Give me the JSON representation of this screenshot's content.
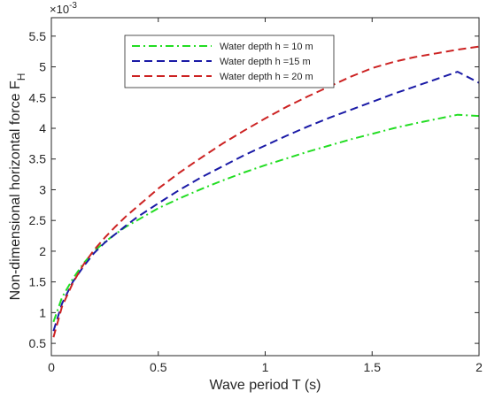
{
  "chart_data": {
    "type": "line",
    "title": "",
    "xlabel": "Wave period T (s)",
    "ylabel_main": "Non-dimensional horizontal force F",
    "ylabel_sub": "H",
    "y_exponent_base": "×10",
    "y_exponent_power": "-3",
    "xlim": [
      0,
      2
    ],
    "ylim": [
      0.3,
      5.8
    ],
    "xticks": [
      0,
      0.5,
      1,
      1.5,
      2
    ],
    "xtick_labels": [
      "0",
      "0.5",
      "1",
      "1.5",
      "2"
    ],
    "yticks": [
      0.5,
      1,
      1.5,
      2,
      2.5,
      3,
      3.5,
      4,
      4.5,
      5,
      5.5
    ],
    "ytick_labels": [
      "0.5",
      "1",
      "1.5",
      "2",
      "2.5",
      "3",
      "3.5",
      "4",
      "4.5",
      "5",
      "5.5"
    ],
    "grid": false,
    "legend_position": "top-center",
    "x": [
      0.01,
      0.05,
      0.1,
      0.15,
      0.2,
      0.25,
      0.3,
      0.35,
      0.4,
      0.5,
      0.6,
      0.7,
      0.8,
      0.9,
      1.0,
      1.1,
      1.2,
      1.3,
      1.4,
      1.5,
      1.6,
      1.7,
      1.8,
      1.9,
      2.0
    ],
    "series": [
      {
        "name": "Water depth h = 10 m",
        "color": "#22dd22",
        "dash": "dashdot",
        "values": [
          0.85,
          1.25,
          1.55,
          1.8,
          2.0,
          2.15,
          2.28,
          2.4,
          2.5,
          2.7,
          2.86,
          3.01,
          3.15,
          3.28,
          3.4,
          3.51,
          3.62,
          3.72,
          3.82,
          3.91,
          4.0,
          4.08,
          4.15,
          4.22,
          4.2
        ]
      },
      {
        "name": "Water depth h =15 m",
        "color": "#1a1aa6",
        "dash": "dashed",
        "values": [
          0.7,
          1.15,
          1.5,
          1.75,
          1.97,
          2.14,
          2.28,
          2.42,
          2.55,
          2.78,
          3.0,
          3.2,
          3.38,
          3.56,
          3.72,
          3.88,
          4.03,
          4.17,
          4.3,
          4.43,
          4.56,
          4.68,
          4.8,
          4.92,
          4.74
        ]
      },
      {
        "name": "Water depth h = 20 m",
        "color": "#cc2222",
        "dash": "dashed",
        "values": [
          0.6,
          1.1,
          1.48,
          1.78,
          2.02,
          2.22,
          2.4,
          2.57,
          2.72,
          3.02,
          3.28,
          3.52,
          3.75,
          3.96,
          4.16,
          4.35,
          4.52,
          4.68,
          4.84,
          4.98,
          5.08,
          5.16,
          5.22,
          5.28,
          5.33
        ]
      }
    ]
  }
}
